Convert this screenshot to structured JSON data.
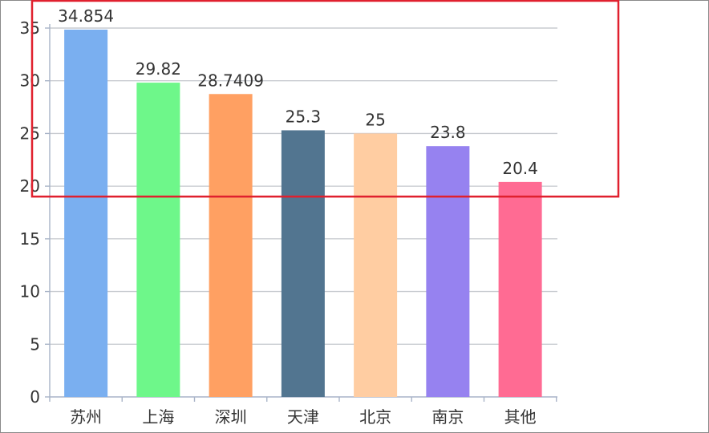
{
  "chart_data": {
    "type": "bar",
    "categories": [
      "苏州",
      "上海",
      "深圳",
      "天津",
      "北京",
      "南京",
      "其他"
    ],
    "values": [
      34.854,
      29.82,
      28.7409,
      25.3,
      25,
      23.8,
      20.4
    ],
    "value_labels": [
      "34.854",
      "29.82",
      "28.7409",
      "25.3",
      "25",
      "23.8",
      "20.4"
    ],
    "bar_colors": [
      "#7aaff0",
      "#6ef78a",
      "#ffa062",
      "#527590",
      "#ffcda2",
      "#9682f0",
      "#ff6b93"
    ],
    "ylim": [
      0,
      35
    ],
    "yticks": [
      0,
      5,
      10,
      15,
      20,
      25,
      30,
      35
    ],
    "grid": true,
    "title": "",
    "xlabel": "",
    "ylabel": ""
  },
  "annotation": {
    "highlight_color": "#e0202e",
    "y_from": 19.2
  }
}
